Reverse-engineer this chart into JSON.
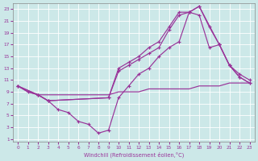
{
  "xlabel": "Windchill (Refroidissement éolien,°C)",
  "background_color": "#cce8e8",
  "grid_color": "#ffffff",
  "line_color": "#993399",
  "xlim": [
    -0.5,
    23.5
  ],
  "ylim": [
    0.5,
    24.0
  ],
  "xticks": [
    0,
    1,
    2,
    3,
    4,
    5,
    6,
    7,
    8,
    9,
    10,
    11,
    12,
    13,
    14,
    15,
    16,
    17,
    18,
    19,
    20,
    21,
    22,
    23
  ],
  "yticks": [
    1,
    3,
    5,
    7,
    9,
    11,
    13,
    15,
    17,
    19,
    21,
    23
  ],
  "line1_x": [
    0,
    1,
    2,
    3,
    4,
    5,
    6,
    7,
    8,
    9,
    10,
    11,
    12,
    13,
    14,
    15,
    16,
    17,
    18,
    19,
    20,
    21,
    22,
    23
  ],
  "line1_y": [
    10,
    9,
    8.5,
    8.5,
    8.5,
    8.5,
    8.5,
    8.5,
    8.5,
    8.5,
    9,
    9,
    9,
    9.5,
    9.5,
    9.5,
    9.5,
    9.5,
    10,
    10,
    10,
    10.5,
    10.5,
    10.5
  ],
  "line2_x": [
    0,
    1,
    2,
    3,
    4,
    5,
    6,
    7,
    8,
    9,
    10,
    11,
    12,
    13,
    14,
    15,
    16,
    17,
    18,
    19,
    20,
    21,
    22,
    23
  ],
  "line2_y": [
    10,
    9,
    8.5,
    7.5,
    6,
    5.5,
    4,
    3.5,
    2.0,
    2.5,
    8,
    10,
    12,
    13,
    15,
    16.5,
    17.5,
    22.5,
    22,
    16.5,
    17,
    13.5,
    12,
    11
  ],
  "line3_x": [
    0,
    2,
    3,
    9,
    10,
    11,
    12,
    13,
    14,
    15,
    16,
    17,
    18,
    19,
    20,
    21,
    22,
    23
  ],
  "line3_y": [
    10,
    8.5,
    7.5,
    8,
    13,
    14,
    15,
    16.5,
    17.5,
    20,
    22.5,
    22.5,
    23.5,
    20,
    17,
    13.5,
    11.5,
    10.5
  ],
  "line4_x": [
    0,
    2,
    3,
    9,
    10,
    11,
    12,
    13,
    14,
    15,
    16,
    17,
    18,
    20,
    21,
    22,
    23
  ],
  "line4_y": [
    10,
    8.5,
    7.5,
    8,
    12.5,
    13.5,
    14.5,
    15.5,
    16.5,
    19.5,
    22,
    22.5,
    23.5,
    17,
    13.5,
    11.5,
    10.5
  ]
}
